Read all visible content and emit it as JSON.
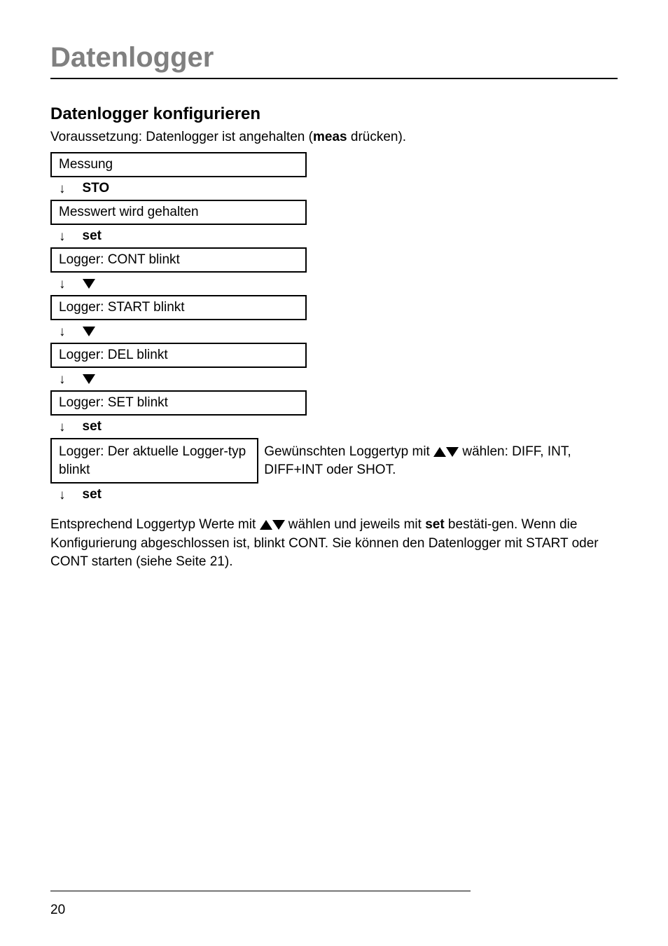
{
  "page": {
    "title": "Datenlogger",
    "number": "20"
  },
  "section": {
    "heading": "Datenlogger konfigurieren",
    "intro_pre": "Voraussetzung: Datenlogger ist angehalten (",
    "intro_bold": "meas",
    "intro_post": " drücken)."
  },
  "flow": {
    "box1": "Messung",
    "arrow1_label": "STO",
    "box2": "Messwert wird gehalten",
    "arrow2_label": "set",
    "box3": "Logger: CONT blinkt",
    "box4": "Logger: START blinkt",
    "box5": "Logger: DEL blinkt",
    "box6": "Logger: SET blinkt",
    "arrow6_label": "set",
    "box7": "Logger: Der aktuelle Logger-typ blinkt",
    "side7_pre": "Gewünschten Loggertyp mit ",
    "side7_post": " wählen: DIFF, INT, DIFF+INT oder SHOT.",
    "arrow7_label": "set"
  },
  "para": {
    "pre": "Entsprechend Loggertyp Werte mit ",
    "mid1": " wählen und jeweils mit ",
    "set": "set",
    "mid2": " bestäti-gen. Wenn die Konfigurierung abgeschlossen ist, blinkt CONT. Sie können den Datenlogger mit START oder CONT starten (siehe Seite 21)."
  }
}
